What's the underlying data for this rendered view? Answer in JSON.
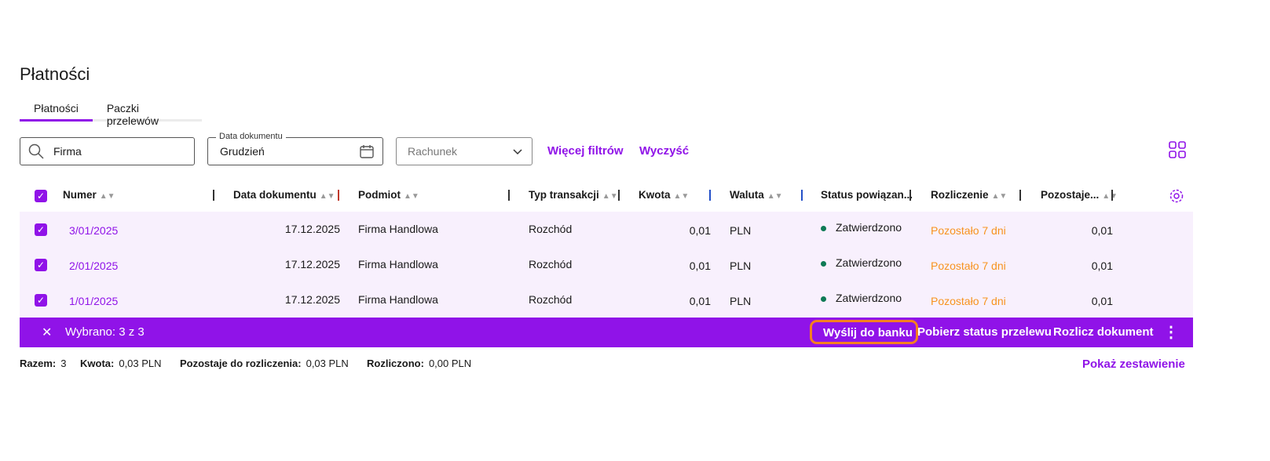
{
  "page_title": "Płatności",
  "tabs": [
    {
      "label": "Płatności",
      "active": true
    },
    {
      "label": "Paczki przelewów",
      "active": false
    }
  ],
  "filters": {
    "search_value": "Firma",
    "date_label": "Data dokumentu",
    "date_value": "Grudzień",
    "account_placeholder": "Rachunek",
    "more_filters": "Więcej filtrów",
    "clear": "Wyczyść"
  },
  "columns": [
    "Numer",
    "Data dokumentu",
    "Podmiot",
    "Typ transakcji",
    "Kwota",
    "Waluta",
    "Status powiązan...",
    "Rozliczenie",
    "Pozostaje..."
  ],
  "rows": [
    {
      "checked": true,
      "number": "3/01/2025",
      "date": "17.12.2025",
      "entity": "Firma Handlowa",
      "type": "Rozchód",
      "amount": "0,01",
      "currency": "PLN",
      "status": "Zatwierdzono",
      "settlement": "Pozostało 7 dni",
      "remaining": "0,01"
    },
    {
      "checked": true,
      "number": "2/01/2025",
      "date": "17.12.2025",
      "entity": "Firma Handlowa",
      "type": "Rozchód",
      "amount": "0,01",
      "currency": "PLN",
      "status": "Zatwierdzono",
      "settlement": "Pozostało 7 dni",
      "remaining": "0,01"
    },
    {
      "checked": true,
      "number": "1/01/2025",
      "date": "17.12.2025",
      "entity": "Firma Handlowa",
      "type": "Rozchód",
      "amount": "0,01",
      "currency": "PLN",
      "status": "Zatwierdzono",
      "settlement": "Pozostało 7 dni",
      "remaining": "0,01"
    }
  ],
  "action_bar": {
    "selected": "Wybrano: 3 z 3",
    "send_to_bank": "Wyślij do banku",
    "get_status": "Pobierz status przelewu",
    "settle": "Rozlicz dokument"
  },
  "footer": {
    "total_label": "Razem:",
    "total": "3",
    "amount_label": "Kwota:",
    "amount": "0,03 PLN",
    "remaining_label": "Pozostaje do rozliczenia:",
    "remaining": "0,03 PLN",
    "settled_label": "Rozliczono:",
    "settled": "0,00 PLN",
    "show_summary": "Pokaż zestawienie"
  },
  "colors": {
    "accent": "#9013e8",
    "row_selected": "#f8f0fd",
    "warning": "#f7931e",
    "status_ok": "#0e7a55",
    "highlight": "#f57f20"
  }
}
